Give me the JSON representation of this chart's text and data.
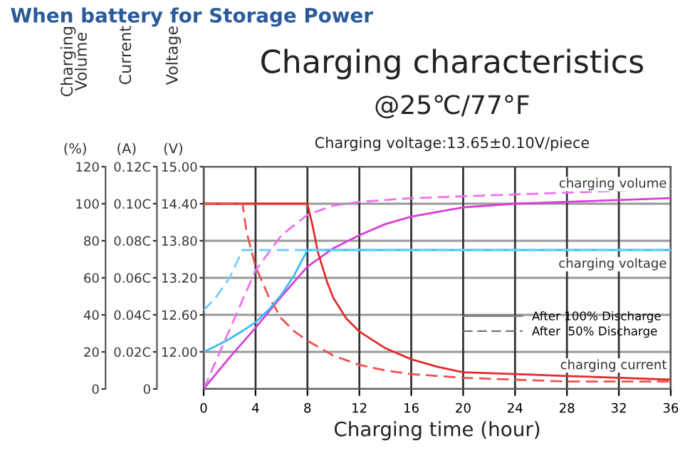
{
  "chart_data": {
    "type": "line",
    "title": "Charging characteristics",
    "subtitle": "@25℃/77°F",
    "xlabel": "Charging time (hour)",
    "ylabel": "Charging Volume (%)",
    "y2label": "Current (A)",
    "y3label": "Voltage (V)",
    "annotations": [
      "When battery for Storage Power",
      "Charging voltage:13.65±0.10V/piece",
      "After 100% Discharge",
      "After  50% Discharge"
    ],
    "xlim": [
      0,
      36
    ],
    "xticks": [
      0,
      4,
      8,
      12,
      16,
      20,
      24,
      28,
      32,
      36
    ],
    "ylim": [
      0,
      120
    ],
    "yticks": [
      0,
      20,
      40,
      60,
      80,
      100,
      120
    ],
    "y2lim": [
      0,
      0.12
    ],
    "y2ticks": [
      {
        "value": 0,
        "label": "0"
      },
      {
        "value": 0.02,
        "label": "0.02C"
      },
      {
        "value": 0.04,
        "label": "0.04C"
      },
      {
        "value": 0.06,
        "label": "0.06C"
      },
      {
        "value": 0.08,
        "label": "0.08C"
      },
      {
        "value": 0.1,
        "label": "0.10C"
      },
      {
        "value": 0.12,
        "label": "0.12C"
      }
    ],
    "y3lim": [
      11.4,
      15.0
    ],
    "y3ticks": [
      {
        "value": 12.0,
        "label": "12.00"
      },
      {
        "value": 12.6,
        "label": "12.60"
      },
      {
        "value": 13.2,
        "label": "13.20"
      },
      {
        "value": 13.8,
        "label": "13.80"
      },
      {
        "value": 14.4,
        "label": "14.40"
      },
      {
        "value": 15.0,
        "label": "15.00"
      }
    ],
    "grid": true,
    "legend": "right",
    "marker": "none",
    "series": [
      {
        "name": "charging volume",
        "color": "#d93ed9",
        "axis": "y",
        "line_style": "solid",
        "x": [
          0,
          2,
          4,
          6,
          8,
          10,
          12,
          14,
          16,
          20,
          24,
          28,
          32,
          36
        ],
        "values": [
          0,
          17,
          33,
          50,
          66,
          76,
          83,
          89,
          93,
          98,
          100,
          101,
          102,
          103
        ]
      },
      {
        "color": "#f070f0",
        "axis": "y",
        "line_style": "dashed",
        "x": [
          0,
          2,
          4,
          6,
          8,
          10,
          12,
          16,
          20,
          28,
          36
        ],
        "values": [
          0,
          32,
          64,
          83,
          94,
          99,
          101,
          103,
          104,
          106,
          108
        ]
      },
      {
        "name": "charging voltage",
        "color": "#3bbcf0",
        "axis": "y3",
        "line_style": "solid",
        "x": [
          0,
          1,
          2,
          3,
          4,
          5,
          6,
          7,
          8,
          36
        ],
        "values": [
          12.0,
          12.1,
          12.21,
          12.34,
          12.48,
          12.68,
          12.93,
          13.25,
          13.65,
          13.65
        ]
      },
      {
        "color": "#6fd0f5",
        "axis": "y3",
        "line_style": "dashed",
        "x": [
          0,
          1,
          2,
          3,
          36
        ],
        "values": [
          12.67,
          12.9,
          13.2,
          13.65,
          13.65
        ]
      },
      {
        "name": "charging current",
        "color": "#e62a2a",
        "axis": "y2",
        "line_style": "solid",
        "x": [
          0,
          8,
          8.4,
          8.8,
          9.5,
          10,
          11,
          12,
          14,
          16,
          18,
          20,
          24,
          28,
          32,
          36
        ],
        "values": [
          0.1,
          0.1,
          0.088,
          0.074,
          0.058,
          0.049,
          0.038,
          0.031,
          0.022,
          0.016,
          0.012,
          0.009,
          0.008,
          0.007,
          0.006,
          0.005
        ]
      },
      {
        "color": "#f05050",
        "axis": "y2",
        "line_style": "dashed",
        "x": [
          0,
          3,
          3.3,
          4,
          5,
          6,
          7,
          8,
          10,
          12,
          14,
          16,
          20,
          24,
          28,
          32,
          36
        ],
        "values": [
          0.1,
          0.1,
          0.085,
          0.066,
          0.05,
          0.038,
          0.031,
          0.026,
          0.018,
          0.013,
          0.01,
          0.008,
          0.006,
          0.005,
          0.004,
          0.004,
          0.004
        ]
      }
    ]
  }
}
